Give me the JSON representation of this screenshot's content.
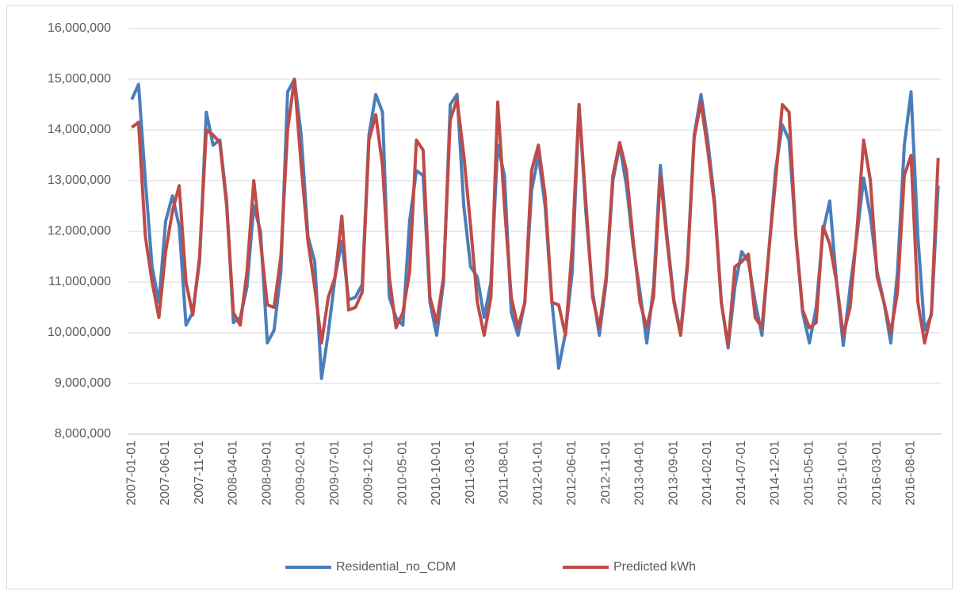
{
  "chart_data": {
    "type": "line",
    "categories": [
      "2007-01-01",
      null,
      null,
      null,
      null,
      "2007-06-01",
      null,
      null,
      null,
      null,
      "2007-11-01",
      null,
      null,
      null,
      null,
      "2008-04-01",
      null,
      null,
      null,
      null,
      "2008-09-01",
      null,
      null,
      null,
      null,
      "2009-02-01",
      null,
      null,
      null,
      null,
      "2009-07-01",
      null,
      null,
      null,
      null,
      "2009-12-01",
      null,
      null,
      null,
      null,
      "2010-05-01",
      null,
      null,
      null,
      null,
      "2010-10-01",
      null,
      null,
      null,
      null,
      "2011-03-01",
      null,
      null,
      null,
      null,
      "2011-08-01",
      null,
      null,
      null,
      null,
      "2012-01-01",
      null,
      null,
      null,
      null,
      "2012-06-01",
      null,
      null,
      null,
      null,
      "2012-11-01",
      null,
      null,
      null,
      null,
      "2013-04-01",
      null,
      null,
      null,
      null,
      "2013-09-01",
      null,
      null,
      null,
      null,
      "2014-02-01",
      null,
      null,
      null,
      null,
      "2014-07-01",
      null,
      null,
      null,
      null,
      "2014-12-01",
      null,
      null,
      null,
      null,
      "2015-05-01",
      null,
      null,
      null,
      null,
      "2015-10-01",
      null,
      null,
      null,
      null,
      "2016-03-01",
      null,
      null,
      null,
      null,
      "2016-08-01",
      null,
      null,
      null,
      null
    ],
    "series": [
      {
        "name": "Residential_no_CDM",
        "color": "#4a7ebb",
        "values": [
          14600000,
          14900000,
          13000000,
          11300000,
          10600000,
          12200000,
          12700000,
          12100000,
          10150000,
          10400000,
          11400000,
          14350000,
          13700000,
          13800000,
          12600000,
          10200000,
          10300000,
          10900000,
          12500000,
          12000000,
          9800000,
          10050000,
          11200000,
          14750000,
          15000000,
          13900000,
          11900000,
          11400000,
          9100000,
          10000000,
          11100000,
          11800000,
          10650000,
          10700000,
          10950000,
          13900000,
          14700000,
          14350000,
          10700000,
          10300000,
          10150000,
          12200000,
          13200000,
          13100000,
          10600000,
          9950000,
          11000000,
          14500000,
          14700000,
          12500000,
          11300000,
          11100000,
          10300000,
          11000000,
          13700000,
          13100000,
          10400000,
          9950000,
          10600000,
          12800000,
          13500000,
          12500000,
          10600000,
          9300000,
          10000000,
          11200000,
          14500000,
          12400000,
          10800000,
          9950000,
          11000000,
          13000000,
          13700000,
          12900000,
          11700000,
          10800000,
          9800000,
          10900000,
          13300000,
          11900000,
          10650000,
          10000000,
          11400000,
          13900000,
          14700000,
          13800000,
          12600000,
          10600000,
          9700000,
          10900000,
          11600000,
          11400000,
          10600000,
          9950000,
          11600000,
          13200000,
          14100000,
          13800000,
          11900000,
          10400000,
          9800000,
          10500000,
          12000000,
          12600000,
          11000000,
          9750000,
          10900000,
          11900000,
          13050000,
          12300000,
          11200000,
          10600000,
          9800000,
          11200000,
          13700000,
          14750000,
          11900000,
          10050000,
          10350000,
          12900000
        ]
      },
      {
        "name": "Predicted kWh",
        "color": "#be4b48",
        "values": [
          14050000,
          14150000,
          11900000,
          11000000,
          10300000,
          11600000,
          12400000,
          12900000,
          11000000,
          10350000,
          11500000,
          14000000,
          13900000,
          13750000,
          12500000,
          10400000,
          10150000,
          11200000,
          13000000,
          11800000,
          10550000,
          10500000,
          11500000,
          14000000,
          15000000,
          13300000,
          11800000,
          10900000,
          9800000,
          10700000,
          11100000,
          12300000,
          10450000,
          10500000,
          10800000,
          13800000,
          14300000,
          13300000,
          11100000,
          10100000,
          10400000,
          11200000,
          13800000,
          13600000,
          10700000,
          10200000,
          11100000,
          14200000,
          14600000,
          13500000,
          12100000,
          10600000,
          9950000,
          10700000,
          14550000,
          12500000,
          10700000,
          10100000,
          10600000,
          13200000,
          13700000,
          12700000,
          10600000,
          10550000,
          9950000,
          11700000,
          14500000,
          12600000,
          10700000,
          10100000,
          11100000,
          13100000,
          13750000,
          13200000,
          11800000,
          10600000,
          10100000,
          10700000,
          13100000,
          11800000,
          10600000,
          9950000,
          11300000,
          13850000,
          14550000,
          13600000,
          12500000,
          10600000,
          9750000,
          11300000,
          11400000,
          11550000,
          10300000,
          10100000,
          11600000,
          13000000,
          14500000,
          14350000,
          11900000,
          10450000,
          10100000,
          10200000,
          12100000,
          11750000,
          11000000,
          9950000,
          10500000,
          12000000,
          13800000,
          13000000,
          11100000,
          10600000,
          10000000,
          10800000,
          13100000,
          13500000,
          10600000,
          9800000,
          10400000,
          13450000
        ]
      }
    ],
    "ylim": [
      8000000,
      16000000
    ],
    "yticks": [
      {
        "value": 8000000,
        "label": "8,000,000"
      },
      {
        "value": 9000000,
        "label": "9,000,000"
      },
      {
        "value": 10000000,
        "label": "10,000,000"
      },
      {
        "value": 11000000,
        "label": "11,000,000"
      },
      {
        "value": 12000000,
        "label": "12,000,000"
      },
      {
        "value": 13000000,
        "label": "13,000,000"
      },
      {
        "value": 14000000,
        "label": "14,000,000"
      },
      {
        "value": 15000000,
        "label": "15,000,000"
      },
      {
        "value": 16000000,
        "label": "16,000,000"
      }
    ],
    "grid": true,
    "legend": "bottom"
  }
}
